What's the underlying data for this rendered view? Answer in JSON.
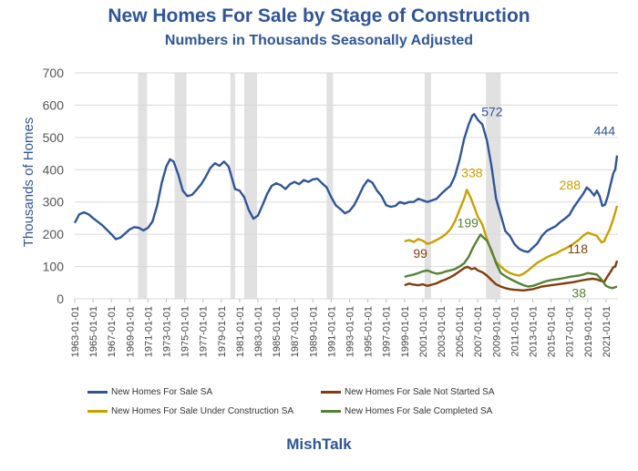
{
  "title": "New Homes For Sale by Stage of Construction",
  "subtitle": "Numbers in Thousands Seasonally Adjusted",
  "brand": "MishTalk",
  "chart_data": {
    "type": "line",
    "ylabel": "Thousands of Homes",
    "ylim": [
      0,
      700
    ],
    "yticks": [
      0,
      100,
      200,
      300,
      400,
      500,
      600,
      700
    ],
    "xlim": [
      1963,
      2022.3
    ],
    "xticks": [
      "1963-01-01",
      "1965-01-01",
      "1967-01-01",
      "1969-01-01",
      "1971-01-01",
      "1973-01-01",
      "1975-01-01",
      "1977-01-01",
      "1979-01-01",
      "1981-01-01",
      "1983-01-01",
      "1985-01-01",
      "1987-01-01",
      "1989-01-01",
      "1991-01-01",
      "1993-01-01",
      "1995-01-01",
      "1997-01-01",
      "1999-01-01",
      "2001-01-01",
      "2003-01-01",
      "2005-01-01",
      "2007-01-01",
      "2009-01-01",
      "2011-01-01",
      "2013-01-01",
      "2015-01-01",
      "2017-01-01",
      "2019-01-01",
      "2021-01-01"
    ],
    "grid": true,
    "recessions": [
      [
        1969.9,
        1970.9
      ],
      [
        1973.9,
        1975.2
      ],
      [
        1980.0,
        1980.5
      ],
      [
        1981.5,
        1982.9
      ],
      [
        1990.5,
        1991.2
      ],
      [
        2001.2,
        2001.9
      ],
      [
        2007.9,
        2009.5
      ]
    ],
    "series": [
      {
        "name": "New Homes For Sale SA",
        "color": "#2f5597",
        "points": [
          [
            1963.0,
            235
          ],
          [
            1963.5,
            262
          ],
          [
            1964.0,
            268
          ],
          [
            1964.5,
            262
          ],
          [
            1965.0,
            250
          ],
          [
            1966.0,
            228
          ],
          [
            1967.0,
            200
          ],
          [
            1967.5,
            185
          ],
          [
            1968.0,
            190
          ],
          [
            1969.0,
            215
          ],
          [
            1969.5,
            222
          ],
          [
            1970.0,
            220
          ],
          [
            1970.5,
            212
          ],
          [
            1971.0,
            220
          ],
          [
            1971.5,
            240
          ],
          [
            1972.0,
            290
          ],
          [
            1972.5,
            360
          ],
          [
            1973.0,
            410
          ],
          [
            1973.4,
            432
          ],
          [
            1973.8,
            425
          ],
          [
            1974.3,
            385
          ],
          [
            1974.8,
            335
          ],
          [
            1975.3,
            318
          ],
          [
            1975.8,
            322
          ],
          [
            1976.3,
            338
          ],
          [
            1976.8,
            355
          ],
          [
            1977.3,
            378
          ],
          [
            1977.8,
            405
          ],
          [
            1978.3,
            420
          ],
          [
            1978.8,
            412
          ],
          [
            1979.3,
            425
          ],
          [
            1979.8,
            410
          ],
          [
            1980.1,
            380
          ],
          [
            1980.5,
            340
          ],
          [
            1981.0,
            335
          ],
          [
            1981.5,
            315
          ],
          [
            1982.0,
            275
          ],
          [
            1982.5,
            248
          ],
          [
            1983.0,
            258
          ],
          [
            1983.5,
            290
          ],
          [
            1984.0,
            325
          ],
          [
            1984.5,
            350
          ],
          [
            1985.0,
            358
          ],
          [
            1985.5,
            352
          ],
          [
            1986.0,
            340
          ],
          [
            1986.5,
            355
          ],
          [
            1987.0,
            362
          ],
          [
            1987.5,
            355
          ],
          [
            1988.0,
            368
          ],
          [
            1988.5,
            362
          ],
          [
            1989.0,
            370
          ],
          [
            1989.5,
            372
          ],
          [
            1990.0,
            358
          ],
          [
            1990.5,
            345
          ],
          [
            1991.0,
            315
          ],
          [
            1991.5,
            290
          ],
          [
            1992.0,
            278
          ],
          [
            1992.5,
            265
          ],
          [
            1993.0,
            272
          ],
          [
            1993.5,
            290
          ],
          [
            1994.0,
            318
          ],
          [
            1994.5,
            348
          ],
          [
            1995.0,
            368
          ],
          [
            1995.5,
            360
          ],
          [
            1996.0,
            335
          ],
          [
            1996.5,
            318
          ],
          [
            1997.0,
            290
          ],
          [
            1997.5,
            285
          ],
          [
            1998.0,
            288
          ],
          [
            1998.5,
            300
          ],
          [
            1999.0,
            295
          ],
          [
            1999.5,
            300
          ],
          [
            2000.0,
            300
          ],
          [
            2000.5,
            310
          ],
          [
            2001.0,
            305
          ],
          [
            2001.5,
            300
          ],
          [
            2002.0,
            305
          ],
          [
            2002.5,
            310
          ],
          [
            2003.0,
            325
          ],
          [
            2003.5,
            338
          ],
          [
            2004.0,
            350
          ],
          [
            2004.5,
            380
          ],
          [
            2005.0,
            430
          ],
          [
            2005.5,
            495
          ],
          [
            2006.0,
            540
          ],
          [
            2006.4,
            568
          ],
          [
            2006.6,
            572
          ],
          [
            2007.0,
            555
          ],
          [
            2007.5,
            540
          ],
          [
            2008.0,
            490
          ],
          [
            2008.5,
            410
          ],
          [
            2009.0,
            310
          ],
          [
            2009.5,
            260
          ],
          [
            2010.0,
            210
          ],
          [
            2010.5,
            195
          ],
          [
            2011.0,
            170
          ],
          [
            2011.5,
            155
          ],
          [
            2012.0,
            148
          ],
          [
            2012.5,
            145
          ],
          [
            2013.0,
            158
          ],
          [
            2013.5,
            172
          ],
          [
            2014.0,
            195
          ],
          [
            2014.5,
            210
          ],
          [
            2015.0,
            218
          ],
          [
            2015.5,
            225
          ],
          [
            2016.0,
            238
          ],
          [
            2016.5,
            248
          ],
          [
            2017.0,
            260
          ],
          [
            2017.5,
            285
          ],
          [
            2018.0,
            305
          ],
          [
            2018.5,
            325
          ],
          [
            2018.9,
            345
          ],
          [
            2019.3,
            335
          ],
          [
            2019.7,
            320
          ],
          [
            2020.0,
            335
          ],
          [
            2020.3,
            318
          ],
          [
            2020.6,
            288
          ],
          [
            2020.9,
            292
          ],
          [
            2021.2,
            318
          ],
          [
            2021.5,
            355
          ],
          [
            2021.8,
            390
          ],
          [
            2022.0,
            400
          ],
          [
            2022.2,
            444
          ]
        ]
      },
      {
        "name": "New Homes For Sale Not Started SA",
        "color": "#843c0c",
        "points": [
          [
            1999.0,
            42
          ],
          [
            1999.5,
            47
          ],
          [
            2000.0,
            44
          ],
          [
            2000.5,
            42
          ],
          [
            2001.0,
            45
          ],
          [
            2001.5,
            40
          ],
          [
            2002.0,
            44
          ],
          [
            2002.5,
            48
          ],
          [
            2003.0,
            55
          ],
          [
            2003.5,
            60
          ],
          [
            2004.0,
            67
          ],
          [
            2004.5,
            75
          ],
          [
            2005.0,
            85
          ],
          [
            2005.5,
            95
          ],
          [
            2005.9,
            99
          ],
          [
            2006.3,
            92
          ],
          [
            2006.7,
            95
          ],
          [
            2007.0,
            88
          ],
          [
            2007.5,
            82
          ],
          [
            2008.0,
            72
          ],
          [
            2008.5,
            58
          ],
          [
            2009.0,
            45
          ],
          [
            2009.5,
            38
          ],
          [
            2010.0,
            33
          ],
          [
            2010.5,
            30
          ],
          [
            2011.0,
            28
          ],
          [
            2011.5,
            27
          ],
          [
            2012.0,
            26
          ],
          [
            2012.5,
            28
          ],
          [
            2013.0,
            30
          ],
          [
            2013.5,
            34
          ],
          [
            2014.0,
            38
          ],
          [
            2014.5,
            40
          ],
          [
            2015.0,
            42
          ],
          [
            2015.5,
            44
          ],
          [
            2016.0,
            46
          ],
          [
            2016.5,
            48
          ],
          [
            2017.0,
            50
          ],
          [
            2017.5,
            52
          ],
          [
            2018.0,
            55
          ],
          [
            2018.5,
            58
          ],
          [
            2019.0,
            60
          ],
          [
            2019.5,
            62
          ],
          [
            2020.0,
            60
          ],
          [
            2020.5,
            55
          ],
          [
            2020.8,
            52
          ],
          [
            2021.0,
            62
          ],
          [
            2021.4,
            80
          ],
          [
            2021.8,
            98
          ],
          [
            2022.0,
            100
          ],
          [
            2022.2,
            118
          ]
        ]
      },
      {
        "name": "New Homes For Sale Under Construction SA",
        "color": "#c9a000",
        "points": [
          [
            1999.0,
            178
          ],
          [
            1999.5,
            182
          ],
          [
            2000.0,
            176
          ],
          [
            2000.5,
            185
          ],
          [
            2001.0,
            180
          ],
          [
            2001.5,
            170
          ],
          [
            2002.0,
            175
          ],
          [
            2002.5,
            182
          ],
          [
            2003.0,
            190
          ],
          [
            2003.5,
            200
          ],
          [
            2004.0,
            215
          ],
          [
            2004.5,
            240
          ],
          [
            2005.0,
            275
          ],
          [
            2005.5,
            310
          ],
          [
            2005.8,
            338
          ],
          [
            2006.2,
            315
          ],
          [
            2006.6,
            285
          ],
          [
            2007.0,
            255
          ],
          [
            2007.5,
            230
          ],
          [
            2008.0,
            185
          ],
          [
            2008.5,
            145
          ],
          [
            2009.0,
            115
          ],
          [
            2009.5,
            100
          ],
          [
            2010.0,
            88
          ],
          [
            2010.5,
            80
          ],
          [
            2011.0,
            75
          ],
          [
            2011.5,
            72
          ],
          [
            2012.0,
            78
          ],
          [
            2012.5,
            88
          ],
          [
            2013.0,
            100
          ],
          [
            2013.5,
            112
          ],
          [
            2014.0,
            120
          ],
          [
            2014.5,
            128
          ],
          [
            2015.0,
            135
          ],
          [
            2015.5,
            140
          ],
          [
            2016.0,
            148
          ],
          [
            2016.5,
            155
          ],
          [
            2017.0,
            162
          ],
          [
            2017.5,
            172
          ],
          [
            2018.0,
            182
          ],
          [
            2018.5,
            195
          ],
          [
            2019.0,
            205
          ],
          [
            2019.5,
            200
          ],
          [
            2020.0,
            195
          ],
          [
            2020.5,
            175
          ],
          [
            2020.8,
            178
          ],
          [
            2021.0,
            192
          ],
          [
            2021.4,
            215
          ],
          [
            2021.8,
            248
          ],
          [
            2022.0,
            268
          ],
          [
            2022.2,
            288
          ]
        ]
      },
      {
        "name": "New Homes For Sale Completed SA",
        "color": "#548235",
        "points": [
          [
            1999.0,
            68
          ],
          [
            1999.5,
            72
          ],
          [
            2000.0,
            75
          ],
          [
            2000.5,
            80
          ],
          [
            2001.0,
            85
          ],
          [
            2001.5,
            88
          ],
          [
            2002.0,
            82
          ],
          [
            2002.5,
            78
          ],
          [
            2003.0,
            80
          ],
          [
            2003.5,
            85
          ],
          [
            2004.0,
            88
          ],
          [
            2004.5,
            92
          ],
          [
            2005.0,
            100
          ],
          [
            2005.5,
            110
          ],
          [
            2006.0,
            130
          ],
          [
            2006.5,
            160
          ],
          [
            2007.0,
            185
          ],
          [
            2007.3,
            199
          ],
          [
            2007.6,
            190
          ],
          [
            2008.0,
            180
          ],
          [
            2008.5,
            150
          ],
          [
            2009.0,
            110
          ],
          [
            2009.5,
            80
          ],
          [
            2010.0,
            70
          ],
          [
            2010.5,
            62
          ],
          [
            2011.0,
            55
          ],
          [
            2011.5,
            48
          ],
          [
            2012.0,
            42
          ],
          [
            2012.5,
            38
          ],
          [
            2013.0,
            40
          ],
          [
            2013.5,
            45
          ],
          [
            2014.0,
            50
          ],
          [
            2014.5,
            55
          ],
          [
            2015.0,
            58
          ],
          [
            2015.5,
            60
          ],
          [
            2016.0,
            62
          ],
          [
            2016.5,
            65
          ],
          [
            2017.0,
            68
          ],
          [
            2017.5,
            70
          ],
          [
            2018.0,
            72
          ],
          [
            2018.5,
            75
          ],
          [
            2019.0,
            80
          ],
          [
            2019.5,
            78
          ],
          [
            2020.0,
            75
          ],
          [
            2020.5,
            60
          ],
          [
            2020.8,
            48
          ],
          [
            2021.0,
            40
          ],
          [
            2021.4,
            35
          ],
          [
            2021.7,
            33
          ],
          [
            2022.0,
            36
          ],
          [
            2022.2,
            38
          ]
        ]
      }
    ],
    "annotations": [
      {
        "text": "572",
        "series": 0,
        "x": 2006.6,
        "y": 572
      },
      {
        "text": "444",
        "series": 0,
        "x": 2022.2,
        "y": 444
      },
      {
        "text": "338",
        "series": 2,
        "x": 2005.8,
        "y": 338
      },
      {
        "text": "288",
        "series": 2,
        "x": 2022.2,
        "y": 288
      },
      {
        "text": "199",
        "series": 3,
        "x": 2007.3,
        "y": 199
      },
      {
        "text": "99",
        "series": 1,
        "x": 2005.9,
        "y": 99
      },
      {
        "text": "118",
        "series": 1,
        "x": 2022.2,
        "y": 118
      },
      {
        "text": "38",
        "series": 3,
        "x": 2022.2,
        "y": 38
      }
    ]
  }
}
